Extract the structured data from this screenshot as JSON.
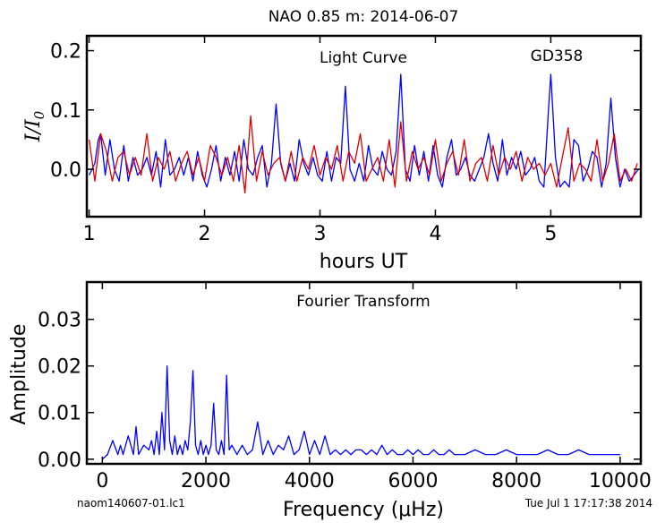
{
  "title": "NAO 0.85 m:  2014-06-07",
  "colors": {
    "data": "#0000ff",
    "fit": "#dd0000",
    "axes": "#000000"
  },
  "footer": {
    "left": "naom140607-01.lc1",
    "right": "Tue Jul  1 17:17:38 2014"
  },
  "chart_data": [
    {
      "type": "line",
      "panel": "light-curve",
      "annotation": "Light Curve",
      "star": "GD358",
      "xlabel": "hours UT",
      "ylabel": "I/I0",
      "xlim": [
        0.98,
        5.78
      ],
      "ylim": [
        -0.08,
        0.225
      ],
      "xticks": [
        1,
        2,
        3,
        4,
        5
      ],
      "yticks": [
        0.0,
        0.1,
        0.2
      ],
      "ytick_labels": [
        "0.0",
        "0.1",
        "0.2"
      ],
      "series": [
        {
          "color": "#0000ff",
          "x": [
            1.0,
            1.05,
            1.08,
            1.1,
            1.14,
            1.18,
            1.22,
            1.26,
            1.3,
            1.34,
            1.38,
            1.42,
            1.46,
            1.5,
            1.54,
            1.58,
            1.62,
            1.66,
            1.7,
            1.74,
            1.78,
            1.82,
            1.86,
            1.9,
            1.94,
            1.98,
            2.02,
            2.06,
            2.1,
            2.14,
            2.18,
            2.22,
            2.26,
            2.3,
            2.34,
            2.38,
            2.42,
            2.46,
            2.5,
            2.54,
            2.58,
            2.62,
            2.66,
            2.7,
            2.74,
            2.78,
            2.82,
            2.86,
            2.9,
            2.94,
            2.98,
            3.02,
            3.06,
            3.1,
            3.14,
            3.18,
            3.22,
            3.26,
            3.3,
            3.34,
            3.38,
            3.42,
            3.46,
            3.5,
            3.54,
            3.58,
            3.62,
            3.66,
            3.7,
            3.74,
            3.78,
            3.82,
            3.86,
            3.9,
            3.94,
            3.98,
            4.02,
            4.06,
            4.1,
            4.14,
            4.18,
            4.22,
            4.26,
            4.3,
            4.34,
            4.38,
            4.42,
            4.46,
            4.5,
            4.54,
            4.58,
            4.62,
            4.66,
            4.7,
            4.74,
            4.78,
            4.82,
            4.86,
            4.9,
            4.94,
            4.98,
            5.0,
            5.04,
            5.08,
            5.12,
            5.16,
            5.2,
            5.24,
            5.28,
            5.32,
            5.36,
            5.4,
            5.44,
            5.48,
            5.52,
            5.56,
            5.6,
            5.64,
            5.68,
            5.72,
            5.76
          ],
          "y": [
            -0.01,
            0.01,
            0.05,
            0.06,
            -0.01,
            0.05,
            0.0,
            -0.02,
            0.04,
            -0.02,
            0.02,
            -0.01,
            0.0,
            0.02,
            -0.01,
            0.03,
            -0.03,
            0.05,
            -0.01,
            0.0,
            0.02,
            -0.01,
            0.02,
            -0.02,
            0.03,
            -0.01,
            -0.03,
            0.0,
            0.04,
            -0.02,
            0.02,
            -0.01,
            0.03,
            -0.02,
            0.05,
            0.0,
            -0.01,
            0.02,
            0.04,
            -0.03,
            0.01,
            0.11,
            0.01,
            -0.02,
            0.01,
            -0.02,
            0.05,
            0.01,
            -0.01,
            0.02,
            -0.01,
            -0.02,
            0.03,
            -0.02,
            0.02,
            0.01,
            0.14,
            0.0,
            -0.02,
            0.01,
            -0.02,
            0.04,
            0.0,
            -0.01,
            0.03,
            0.0,
            -0.01,
            0.03,
            0.16,
            0.0,
            -0.02,
            0.04,
            -0.01,
            0.03,
            -0.02,
            0.04,
            -0.01,
            -0.03,
            0.02,
            0.05,
            -0.01,
            0.0,
            0.02,
            -0.01,
            -0.02,
            0.0,
            0.02,
            0.06,
            0.01,
            -0.02,
            0.05,
            -0.01,
            0.02,
            0.0,
            0.03,
            -0.01,
            0.0,
            0.02,
            -0.02,
            -0.03,
            0.1,
            0.16,
            0.02,
            -0.03,
            -0.02,
            -0.03,
            0.05,
            0.04,
            -0.02,
            0.0,
            0.03,
            0.02,
            -0.03,
            0.01,
            0.12,
            0.02,
            -0.03,
            0.0,
            -0.02,
            -0.01,
            0.0
          ]
        },
        {
          "color": "#dd0000",
          "x": [
            1.0,
            1.05,
            1.1,
            1.15,
            1.2,
            1.25,
            1.3,
            1.35,
            1.4,
            1.45,
            1.5,
            1.55,
            1.6,
            1.65,
            1.7,
            1.75,
            1.8,
            1.85,
            1.9,
            1.95,
            2.0,
            2.05,
            2.1,
            2.15,
            2.2,
            2.25,
            2.3,
            2.35,
            2.4,
            2.45,
            2.5,
            2.55,
            2.6,
            2.65,
            2.7,
            2.75,
            2.8,
            2.85,
            2.9,
            2.95,
            3.0,
            3.05,
            3.1,
            3.15,
            3.2,
            3.25,
            3.3,
            3.35,
            3.4,
            3.45,
            3.5,
            3.55,
            3.6,
            3.65,
            3.7,
            3.75,
            3.8,
            3.85,
            3.9,
            3.95,
            4.0,
            4.05,
            4.1,
            4.15,
            4.2,
            4.25,
            4.3,
            4.35,
            4.4,
            4.45,
            4.5,
            4.55,
            4.6,
            4.65,
            4.7,
            4.75,
            4.8,
            4.85,
            4.9,
            4.95,
            5.0,
            5.05,
            5.1,
            5.15,
            5.2,
            5.25,
            5.3,
            5.35,
            5.4,
            5.45,
            5.5,
            5.55,
            5.6,
            5.65,
            5.7,
            5.75
          ],
          "y": [
            0.05,
            -0.02,
            0.06,
            0.03,
            -0.02,
            0.02,
            0.03,
            -0.01,
            0.02,
            -0.01,
            0.06,
            -0.02,
            0.02,
            0.0,
            0.03,
            -0.02,
            0.01,
            0.03,
            -0.01,
            0.02,
            -0.02,
            0.04,
            0.02,
            -0.01,
            0.02,
            -0.02,
            0.04,
            -0.04,
            0.09,
            -0.02,
            0.03,
            -0.01,
            0.01,
            0.02,
            -0.02,
            0.03,
            -0.02,
            0.02,
            0.0,
            0.04,
            -0.01,
            0.02,
            0.0,
            0.04,
            -0.02,
            0.03,
            0.01,
            0.06,
            -0.02,
            0.0,
            0.02,
            -0.02,
            0.05,
            -0.03,
            0.08,
            -0.02,
            0.03,
            0.0,
            0.02,
            -0.01,
            0.05,
            -0.02,
            0.01,
            0.03,
            -0.01,
            0.05,
            -0.02,
            0.01,
            0.02,
            -0.02,
            0.04,
            -0.01,
            0.02,
            0.0,
            0.03,
            -0.02,
            0.02,
            0.0,
            0.01,
            -0.01,
            0.01,
            -0.03,
            0.02,
            0.07,
            -0.02,
            0.01,
            0.0,
            -0.02,
            0.05,
            -0.02,
            0.01,
            0.06,
            -0.02,
            0.0,
            -0.02,
            0.01
          ]
        }
      ]
    },
    {
      "type": "line",
      "panel": "fourier-transform",
      "annotation": "Fourier Transform",
      "xlabel": "Frequency (μHz)",
      "ylabel": "Amplitude",
      "xlim": [
        -300,
        10400
      ],
      "ylim": [
        -0.001,
        0.038
      ],
      "xticks": [
        0,
        2000,
        4000,
        6000,
        8000,
        10000
      ],
      "yticks": [
        0.0,
        0.01,
        0.02,
        0.03
      ],
      "ytick_labels": [
        "0.00",
        "0.01",
        "0.02",
        "0.03"
      ],
      "series": [
        {
          "color": "#0000ff",
          "x": [
            0,
            100,
            200,
            300,
            350,
            400,
            500,
            600,
            650,
            700,
            800,
            900,
            950,
            1000,
            1050,
            1100,
            1150,
            1200,
            1250,
            1300,
            1350,
            1400,
            1450,
            1500,
            1550,
            1600,
            1650,
            1700,
            1750,
            1800,
            1850,
            1900,
            1950,
            2000,
            2050,
            2100,
            2150,
            2200,
            2250,
            2300,
            2350,
            2400,
            2450,
            2500,
            2600,
            2700,
            2800,
            2900,
            3000,
            3100,
            3200,
            3300,
            3400,
            3500,
            3600,
            3700,
            3800,
            3900,
            4000,
            4100,
            4200,
            4300,
            4400,
            4500,
            4600,
            4700,
            4800,
            4900,
            5000,
            5100,
            5200,
            5300,
            5400,
            5500,
            5600,
            5700,
            5800,
            5900,
            6000,
            6100,
            6200,
            6300,
            6400,
            6500,
            6600,
            6700,
            6800,
            6900,
            7000,
            7200,
            7400,
            7600,
            7800,
            8000,
            8200,
            8400,
            8600,
            8800,
            9000,
            9200,
            9400,
            9600,
            9800,
            10000
          ],
          "y": [
            0.0,
            0.001,
            0.004,
            0.001,
            0.003,
            0.001,
            0.005,
            0.001,
            0.007,
            0.001,
            0.003,
            0.002,
            0.004,
            0.001,
            0.006,
            0.001,
            0.01,
            0.002,
            0.02,
            0.004,
            0.001,
            0.005,
            0.001,
            0.003,
            0.001,
            0.004,
            0.002,
            0.008,
            0.019,
            0.003,
            0.001,
            0.004,
            0.001,
            0.003,
            0.001,
            0.003,
            0.012,
            0.002,
            0.001,
            0.004,
            0.001,
            0.018,
            0.002,
            0.003,
            0.001,
            0.003,
            0.001,
            0.002,
            0.008,
            0.001,
            0.004,
            0.001,
            0.003,
            0.002,
            0.005,
            0.001,
            0.002,
            0.006,
            0.001,
            0.004,
            0.001,
            0.005,
            0.001,
            0.002,
            0.001,
            0.002,
            0.001,
            0.002,
            0.002,
            0.001,
            0.002,
            0.001,
            0.003,
            0.001,
            0.002,
            0.001,
            0.001,
            0.002,
            0.001,
            0.002,
            0.001,
            0.001,
            0.002,
            0.001,
            0.001,
            0.002,
            0.001,
            0.001,
            0.001,
            0.002,
            0.001,
            0.001,
            0.002,
            0.001,
            0.001,
            0.001,
            0.002,
            0.001,
            0.001,
            0.002,
            0.001,
            0.001,
            0.001,
            0.001
          ]
        }
      ]
    }
  ]
}
